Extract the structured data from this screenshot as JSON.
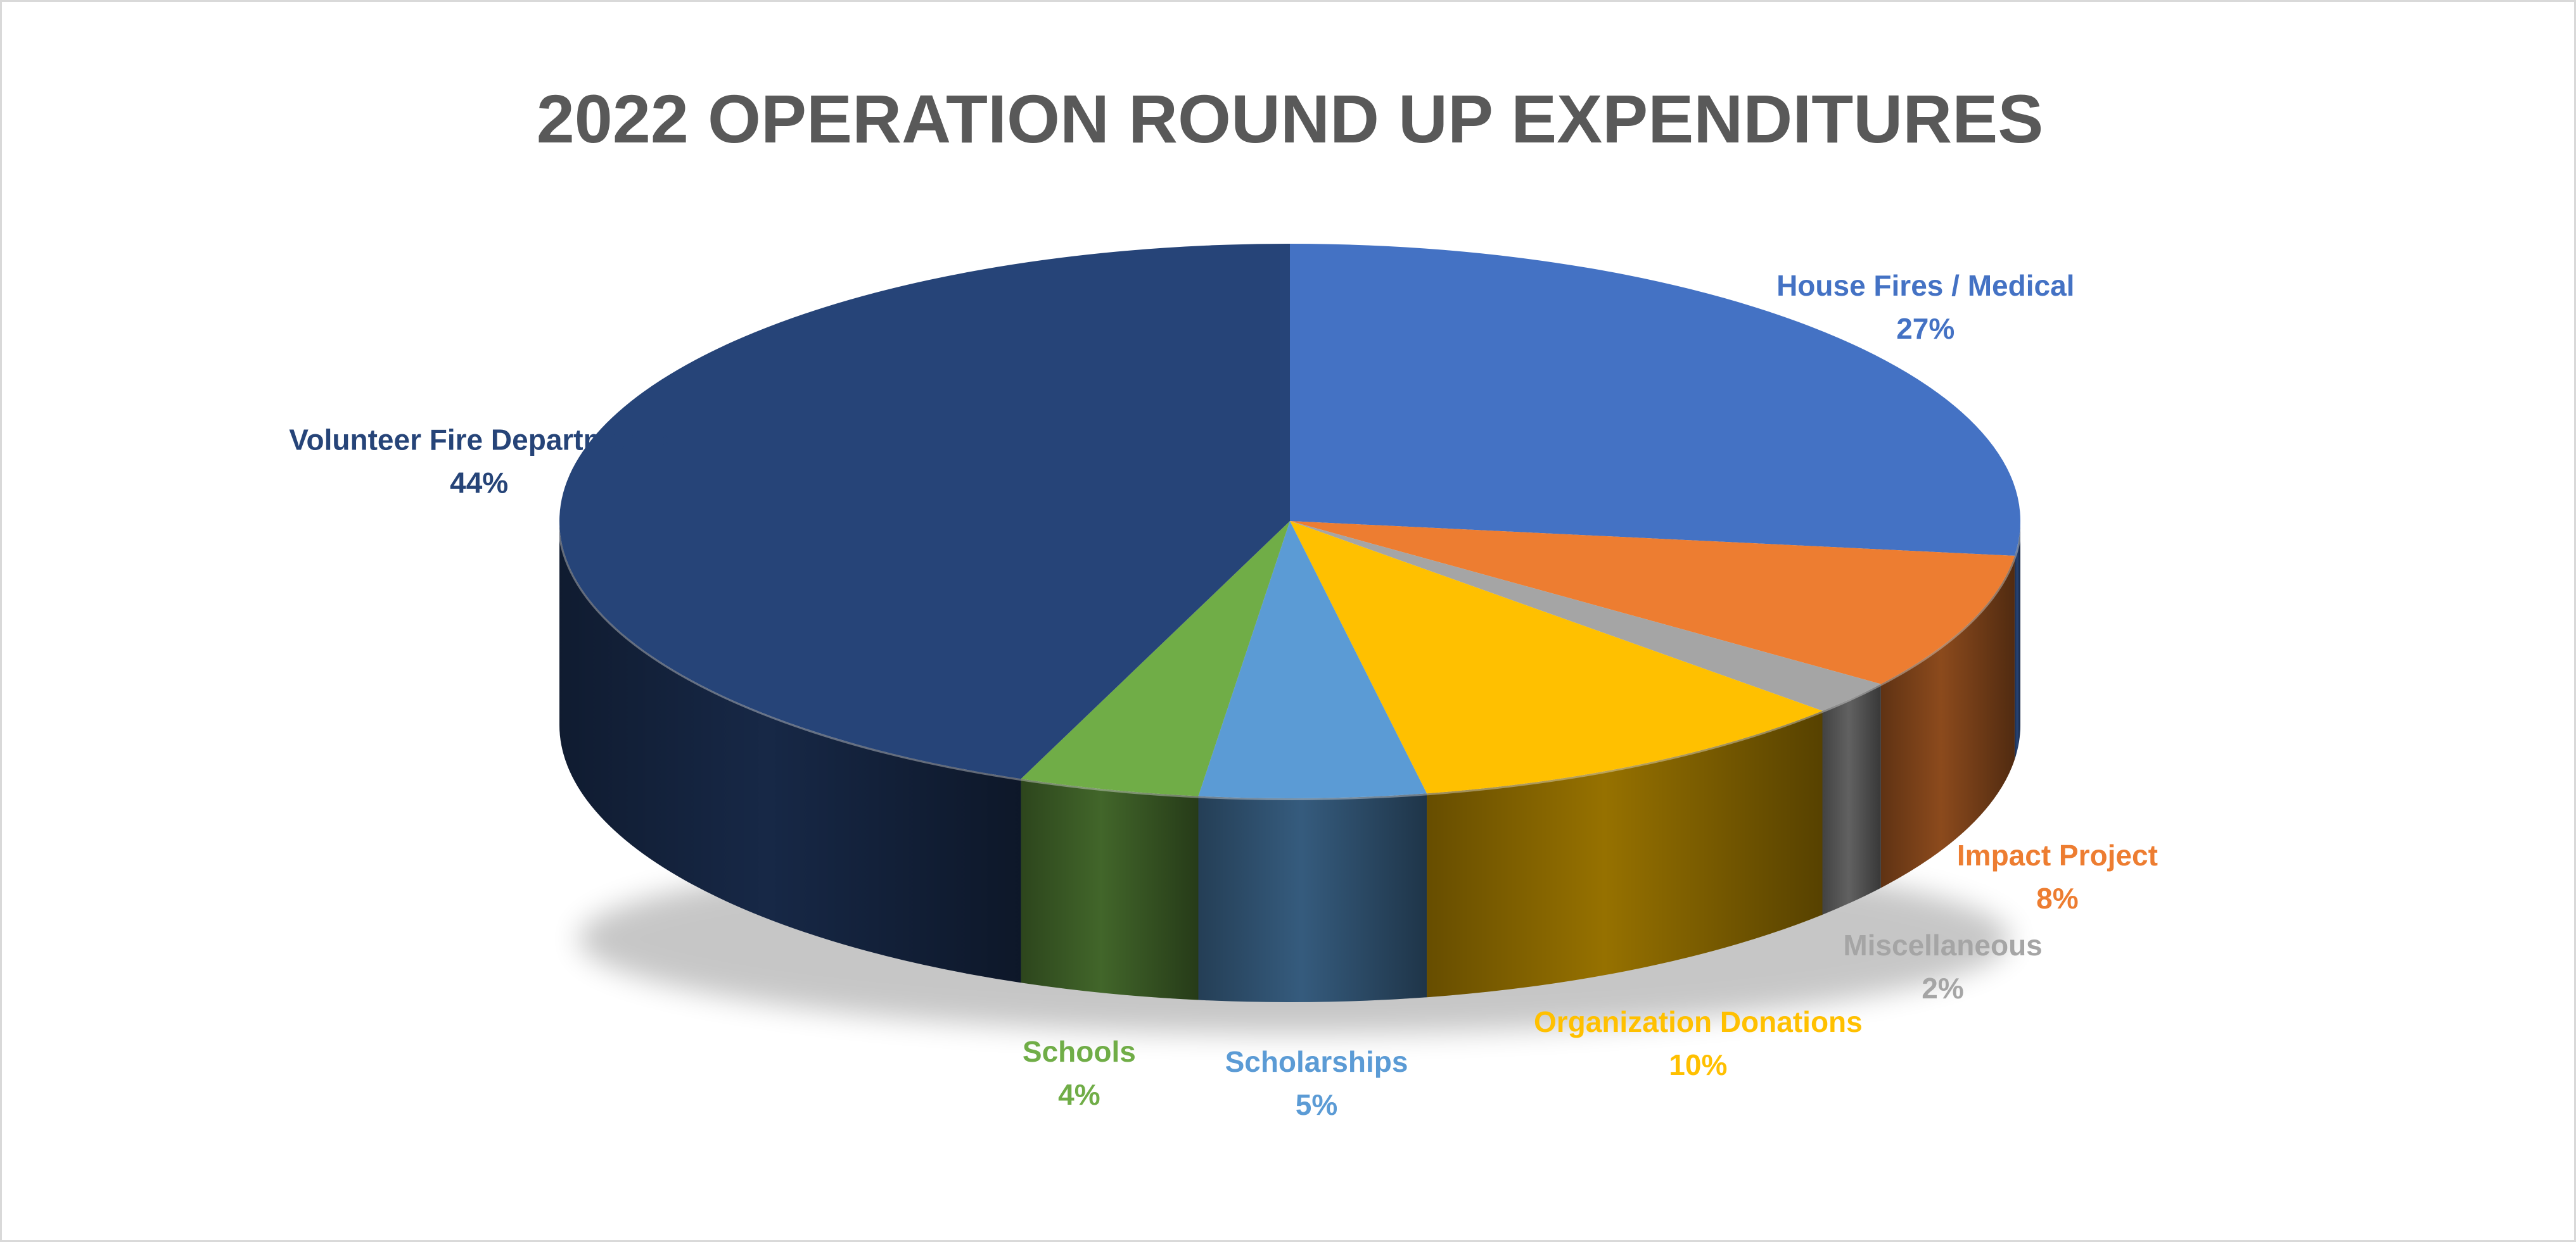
{
  "chart_data": {
    "type": "pie",
    "style": "3d",
    "title": "2022 OPERATION ROUND UP EXPENDITURES",
    "slices": [
      {
        "label": "House Fires / Medical",
        "value": 27,
        "value_label": "27%",
        "color": "#4472C4"
      },
      {
        "label": "Impact Project",
        "value": 8,
        "value_label": "8%",
        "color": "#ED7D31"
      },
      {
        "label": "Miscellaneous",
        "value": 2,
        "value_label": "2%",
        "color": "#A5A5A5"
      },
      {
        "label": "Organization Donations",
        "value": 10,
        "value_label": "10%",
        "color": "#FFC000"
      },
      {
        "label": "Scholarships",
        "value": 5,
        "value_label": "5%",
        "color": "#5B9BD5"
      },
      {
        "label": "Schools",
        "value": 4,
        "value_label": "4%",
        "color": "#70AD47"
      },
      {
        "label": "Volunteer Fire Departments",
        "value": 44,
        "value_label": "44%",
        "color": "#264478"
      }
    ],
    "legend": "none",
    "data_labels": "outside"
  }
}
